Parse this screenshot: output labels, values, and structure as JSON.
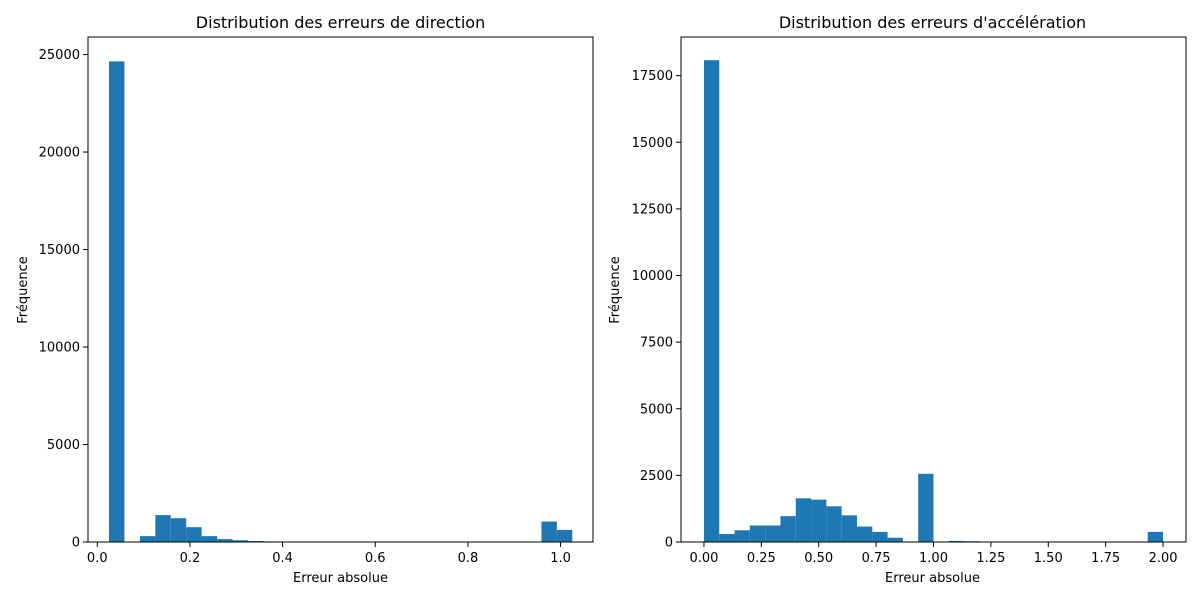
{
  "chart_data": [
    {
      "type": "bar",
      "title": "Distribution des erreurs de direction",
      "xlabel": "Erreur absolue",
      "ylabel": "Fréquence",
      "xlim": [
        -0.02,
        1.07
      ],
      "ylim": [
        0,
        25900
      ],
      "xticks": [
        0.0,
        0.2,
        0.4,
        0.6,
        0.8,
        1.0
      ],
      "xtick_labels": [
        "0.0",
        "0.2",
        "0.4",
        "0.6",
        "0.8",
        "1.0"
      ],
      "yticks": [
        0,
        5000,
        10000,
        15000,
        20000,
        25000
      ],
      "ytick_labels": [
        "0",
        "5000",
        "10000",
        "15000",
        "20000",
        "25000"
      ],
      "grid": false,
      "color": "#1f77b4",
      "bin_width": 0.0333,
      "bins": [
        {
          "x": 0.0253,
          "value": 24650
        },
        {
          "x": 0.0587,
          "value": 0
        },
        {
          "x": 0.092,
          "value": 300
        },
        {
          "x": 0.1253,
          "value": 1380
        },
        {
          "x": 0.1587,
          "value": 1220
        },
        {
          "x": 0.192,
          "value": 760
        },
        {
          "x": 0.2253,
          "value": 300
        },
        {
          "x": 0.2587,
          "value": 150
        },
        {
          "x": 0.292,
          "value": 90
        },
        {
          "x": 0.3253,
          "value": 50
        },
        {
          "x": 0.3587,
          "value": 30
        },
        {
          "x": 0.392,
          "value": 20
        },
        {
          "x": 0.9587,
          "value": 1050
        },
        {
          "x": 0.992,
          "value": 620
        }
      ]
    },
    {
      "type": "bar",
      "title": "Distribution des erreurs d'accélération",
      "xlabel": "Erreur absolue",
      "ylabel": "Fréquence",
      "xlim": [
        -0.1,
        2.1
      ],
      "ylim": [
        0,
        18950
      ],
      "xticks": [
        0.0,
        0.25,
        0.5,
        0.75,
        1.0,
        1.25,
        1.5,
        1.75,
        2.0
      ],
      "xtick_labels": [
        "0.00",
        "0.25",
        "0.50",
        "0.75",
        "1.00",
        "1.25",
        "1.50",
        "1.75",
        "2.00"
      ],
      "yticks": [
        0,
        2500,
        5000,
        7500,
        10000,
        12500,
        15000,
        17500
      ],
      "ytick_labels": [
        "0",
        "2500",
        "5000",
        "7500",
        "10000",
        "12500",
        "15000",
        "17500"
      ],
      "grid": false,
      "color": "#1f77b4",
      "bin_width": 0.0667,
      "bins": [
        {
          "x": 0.0,
          "value": 18080
        },
        {
          "x": 0.0667,
          "value": 300
        },
        {
          "x": 0.1333,
          "value": 440
        },
        {
          "x": 0.2,
          "value": 620
        },
        {
          "x": 0.2667,
          "value": 620
        },
        {
          "x": 0.3333,
          "value": 970
        },
        {
          "x": 0.4,
          "value": 1640
        },
        {
          "x": 0.4667,
          "value": 1590
        },
        {
          "x": 0.5333,
          "value": 1340
        },
        {
          "x": 0.6,
          "value": 1000
        },
        {
          "x": 0.6667,
          "value": 580
        },
        {
          "x": 0.7333,
          "value": 380
        },
        {
          "x": 0.8,
          "value": 160
        },
        {
          "x": 0.8667,
          "value": 0
        },
        {
          "x": 0.9333,
          "value": 2560
        },
        {
          "x": 1.0,
          "value": 0
        },
        {
          "x": 1.0667,
          "value": 40
        },
        {
          "x": 1.1333,
          "value": 30
        },
        {
          "x": 1.9333,
          "value": 380
        }
      ]
    }
  ]
}
